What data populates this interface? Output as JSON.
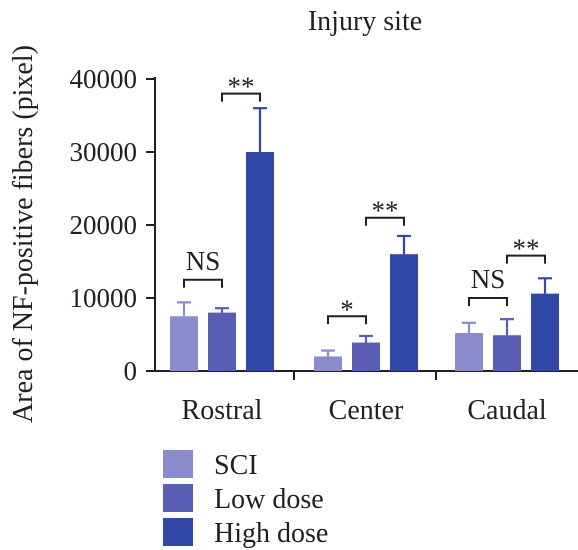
{
  "chart_data": {
    "type": "bar",
    "title": "Injury site",
    "xlabel": "",
    "ylabel": "Area of NF-positive fibers (pixel)",
    "ylim": [
      0,
      40000
    ],
    "yticks": [
      "0",
      "10000",
      "20000",
      "30000",
      "40000"
    ],
    "categories": [
      "Rostral",
      "Center",
      "Caudal"
    ],
    "grid": false,
    "legend_position": "bottom-left",
    "series": [
      {
        "name": "SCI",
        "color": "#8b8ccc",
        "values": [
          7500,
          2000,
          5200
        ],
        "errors": [
          1900,
          800,
          1400
        ]
      },
      {
        "name": "Low dose",
        "color": "#5a5eb4",
        "values": [
          8000,
          3900,
          4900
        ],
        "errors": [
          600,
          900,
          2200
        ]
      },
      {
        "name": "High dose",
        "color": "#3248a8",
        "values": [
          30000,
          16000,
          10600
        ],
        "errors": [
          6000,
          2500,
          2100
        ]
      }
    ],
    "annotations": [
      {
        "label": "**",
        "category": 0,
        "from_series": 1,
        "to_series": 2,
        "bracket_y": 38000
      },
      {
        "label": "NS",
        "category": 0,
        "from_series": 0,
        "to_series": 1,
        "bracket_y": 12500
      },
      {
        "label": "**",
        "category": 1,
        "from_series": 1,
        "to_series": 2,
        "bracket_y": 21000
      },
      {
        "label": "*",
        "category": 1,
        "from_series": 0,
        "to_series": 1,
        "bracket_y": 7500
      },
      {
        "label": "**",
        "category": 2,
        "from_series": 1,
        "to_series": 2,
        "bracket_y": 15800
      },
      {
        "label": "NS",
        "category": 2,
        "from_series": 0,
        "to_series": 1,
        "bracket_y": 10000
      }
    ]
  }
}
